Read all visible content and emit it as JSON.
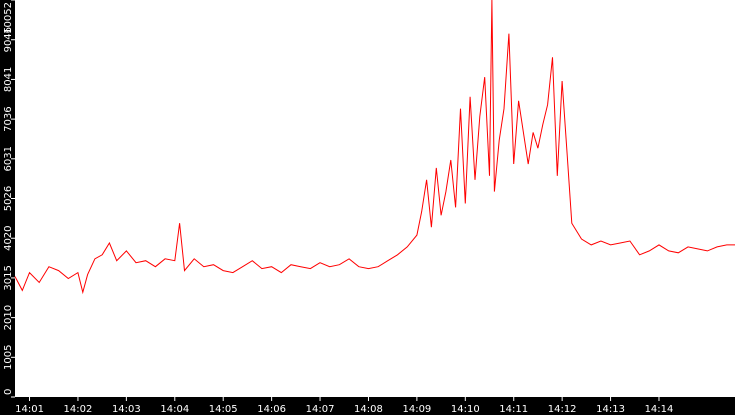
{
  "chart_data": {
    "type": "line",
    "x_ticks": [
      "14:01",
      "14:02",
      "14:03",
      "14:04",
      "14:05",
      "14:06",
      "14:07",
      "14:08",
      "14:09",
      "14:10",
      "14:11",
      "14:12",
      "14:13",
      "14:14"
    ],
    "y_ticks": [
      0,
      1005,
      2010,
      3015,
      4020,
      5026,
      6031,
      7036,
      8041,
      9046,
      10052
    ],
    "ylim": [
      0,
      10052
    ],
    "xlim_minutes": [
      0.7,
      15.57
    ],
    "grid": false,
    "legend": "none",
    "series": [
      {
        "color": "#ff0000",
        "points": [
          [
            0.7,
            3050
          ],
          [
            0.85,
            2700
          ],
          [
            1.0,
            3150
          ],
          [
            1.2,
            2900
          ],
          [
            1.4,
            3300
          ],
          [
            1.6,
            3200
          ],
          [
            1.8,
            3000
          ],
          [
            2.0,
            3150
          ],
          [
            2.1,
            2650
          ],
          [
            2.2,
            3100
          ],
          [
            2.35,
            3500
          ],
          [
            2.5,
            3600
          ],
          [
            2.65,
            3900
          ],
          [
            2.8,
            3450
          ],
          [
            3.0,
            3700
          ],
          [
            3.2,
            3400
          ],
          [
            3.4,
            3450
          ],
          [
            3.6,
            3300
          ],
          [
            3.8,
            3500
          ],
          [
            4.0,
            3450
          ],
          [
            4.1,
            4400
          ],
          [
            4.2,
            3200
          ],
          [
            4.4,
            3500
          ],
          [
            4.6,
            3300
          ],
          [
            4.8,
            3350
          ],
          [
            5.0,
            3200
          ],
          [
            5.2,
            3150
          ],
          [
            5.4,
            3300
          ],
          [
            5.6,
            3450
          ],
          [
            5.8,
            3250
          ],
          [
            6.0,
            3300
          ],
          [
            6.2,
            3150
          ],
          [
            6.4,
            3350
          ],
          [
            6.6,
            3300
          ],
          [
            6.8,
            3250
          ],
          [
            7.0,
            3400
          ],
          [
            7.2,
            3300
          ],
          [
            7.4,
            3350
          ],
          [
            7.6,
            3500
          ],
          [
            7.8,
            3300
          ],
          [
            8.0,
            3250
          ],
          [
            8.2,
            3300
          ],
          [
            8.4,
            3450
          ],
          [
            8.6,
            3600
          ],
          [
            8.8,
            3800
          ],
          [
            9.0,
            4100
          ],
          [
            9.1,
            4700
          ],
          [
            9.2,
            5500
          ],
          [
            9.3,
            4300
          ],
          [
            9.4,
            5800
          ],
          [
            9.5,
            4600
          ],
          [
            9.6,
            5200
          ],
          [
            9.7,
            6000
          ],
          [
            9.8,
            4800
          ],
          [
            9.9,
            7300
          ],
          [
            10.0,
            4900
          ],
          [
            10.1,
            7600
          ],
          [
            10.2,
            5500
          ],
          [
            10.3,
            7100
          ],
          [
            10.4,
            8100
          ],
          [
            10.5,
            5600
          ],
          [
            10.55,
            10052
          ],
          [
            10.6,
            5200
          ],
          [
            10.7,
            6500
          ],
          [
            10.8,
            7300
          ],
          [
            10.9,
            9200
          ],
          [
            11.0,
            5900
          ],
          [
            11.1,
            7500
          ],
          [
            11.2,
            6700
          ],
          [
            11.3,
            5900
          ],
          [
            11.4,
            6700
          ],
          [
            11.5,
            6300
          ],
          [
            11.6,
            6900
          ],
          [
            11.7,
            7400
          ],
          [
            11.8,
            8600
          ],
          [
            11.9,
            5600
          ],
          [
            12.0,
            8000
          ],
          [
            12.1,
            6200
          ],
          [
            12.2,
            4400
          ],
          [
            12.4,
            4000
          ],
          [
            12.6,
            3850
          ],
          [
            12.8,
            3950
          ],
          [
            13.0,
            3850
          ],
          [
            13.2,
            3900
          ],
          [
            13.4,
            3950
          ],
          [
            13.6,
            3600
          ],
          [
            13.8,
            3700
          ],
          [
            14.0,
            3850
          ],
          [
            14.2,
            3700
          ],
          [
            14.4,
            3650
          ],
          [
            14.6,
            3800
          ],
          [
            14.8,
            3750
          ],
          [
            15.0,
            3700
          ],
          [
            15.2,
            3800
          ],
          [
            15.4,
            3850
          ],
          [
            15.57,
            3850
          ]
        ]
      }
    ],
    "colors": {
      "background": "#ffffff",
      "axis_band": "#000000",
      "tick_label": "#ffffff",
      "line": "#ff0000"
    }
  }
}
